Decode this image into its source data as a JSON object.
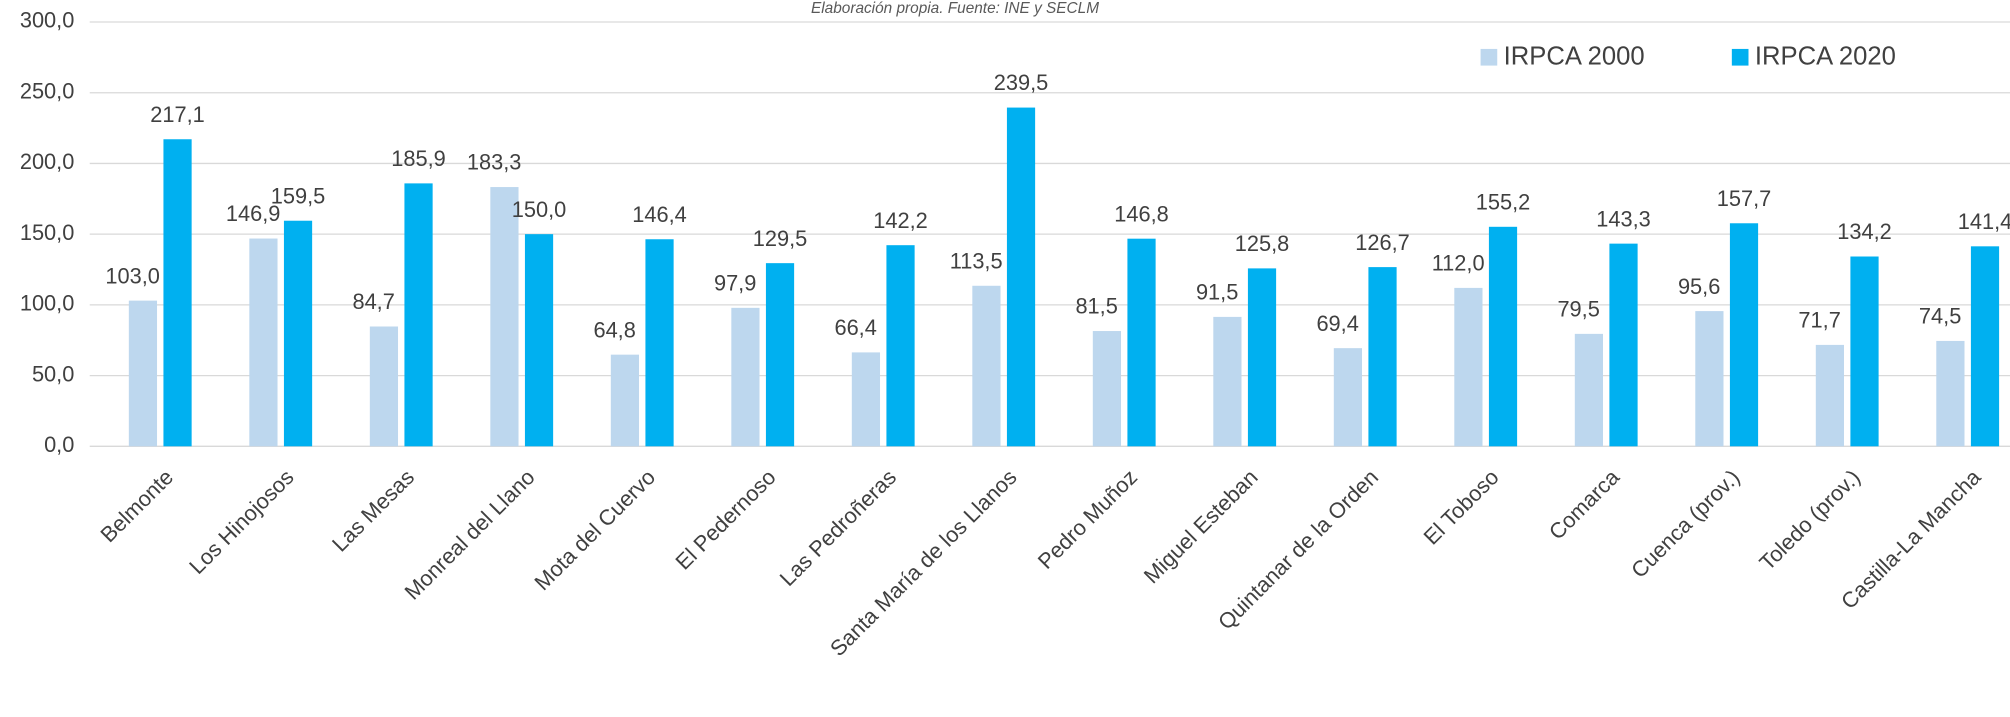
{
  "chart_data": {
    "type": "bar",
    "subtitle": "Elaboración propia. Fuente: INE y SECLM",
    "categories": [
      "Belmonte",
      "Los Hinojosos",
      "Las Mesas",
      "Monreal del Llano",
      "Mota del Cuervo",
      "El Pedernoso",
      "Las Pedroñeras",
      "Santa María de los Llanos",
      "Pedro Muñoz",
      "Miguel Esteban",
      "Quintanar de la Orden",
      "El Toboso",
      "Comarca",
      "Cuenca (prov.)",
      "Toledo (prov.)",
      "Castilla-La Mancha"
    ],
    "series": [
      {
        "name": "IRPCA 2000",
        "color": "#bdd7ee",
        "values": [
          103.0,
          146.9,
          84.7,
          183.3,
          64.8,
          97.9,
          66.4,
          113.5,
          81.5,
          91.5,
          69.4,
          112.0,
          79.5,
          95.6,
          71.7,
          74.5
        ],
        "value_labels": [
          "103,0",
          "146,9",
          "84,7",
          "183,3",
          "64,8",
          "97,9",
          "66,4",
          "113,5",
          "81,5",
          "91,5",
          "69,4",
          "112,0",
          "79,5",
          "95,6",
          "71,7",
          "74,5"
        ]
      },
      {
        "name": "IRPCA 2020",
        "color": "#00b0f0",
        "values": [
          217.1,
          159.5,
          185.9,
          150.0,
          146.4,
          129.5,
          142.2,
          239.5,
          146.8,
          125.8,
          126.7,
          155.2,
          143.3,
          157.7,
          134.2,
          141.4
        ],
        "value_labels": [
          "217,1",
          "159,5",
          "185,9",
          "150,0",
          "146,4",
          "129,5",
          "142,2",
          "239,5",
          "146,8",
          "125,8",
          "126,7",
          "155,2",
          "143,3",
          "157,7",
          "134,2",
          "141,4"
        ]
      }
    ],
    "ylim": [
      0,
      300
    ],
    "yticks": [
      {
        "value": 0,
        "label": "0,0"
      },
      {
        "value": 50,
        "label": "50,0"
      },
      {
        "value": 100,
        "label": "100,0"
      },
      {
        "value": 150,
        "label": "150,0"
      },
      {
        "value": 200,
        "label": "200,0"
      },
      {
        "value": 250,
        "label": "250,0"
      },
      {
        "value": 300,
        "label": "300,0"
      }
    ],
    "grid": true,
    "legend": "top-right"
  }
}
